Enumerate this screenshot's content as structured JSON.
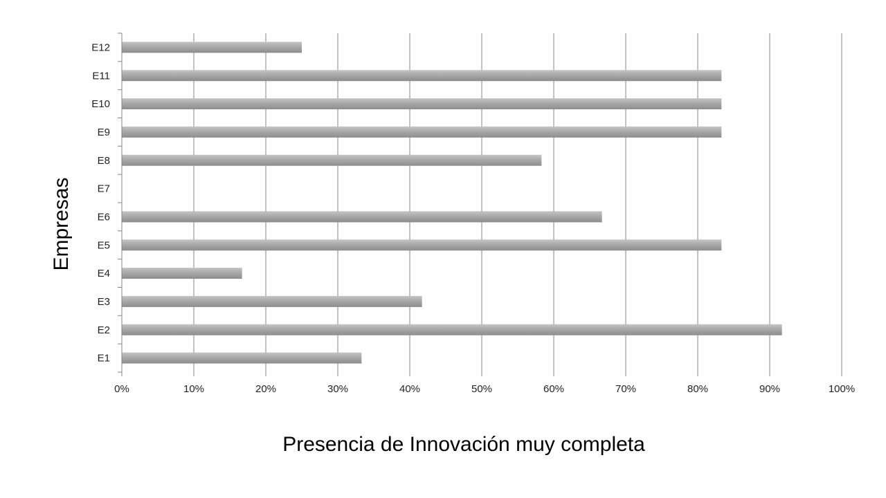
{
  "chart_data": {
    "type": "bar",
    "orientation": "horizontal",
    "categories": [
      "E1",
      "E2",
      "E3",
      "E4",
      "E5",
      "E6",
      "E7",
      "E8",
      "E9",
      "E10",
      "E11",
      "E12"
    ],
    "values": [
      33.3,
      91.7,
      41.7,
      16.7,
      83.3,
      66.7,
      0,
      58.3,
      83.3,
      83.3,
      83.3,
      25.0
    ],
    "x_ticks": [
      "0%",
      "10%",
      "20%",
      "30%",
      "40%",
      "50%",
      "60%",
      "70%",
      "80%",
      "90%",
      "100%"
    ],
    "xlim": [
      0,
      100
    ],
    "xlabel": "Presencia de Innovación muy completa",
    "ylabel": "Empresas",
    "title": "",
    "grid": "vertical",
    "legend": "none",
    "bar_color": "#a6a6a6",
    "grid_color": "#868686"
  }
}
